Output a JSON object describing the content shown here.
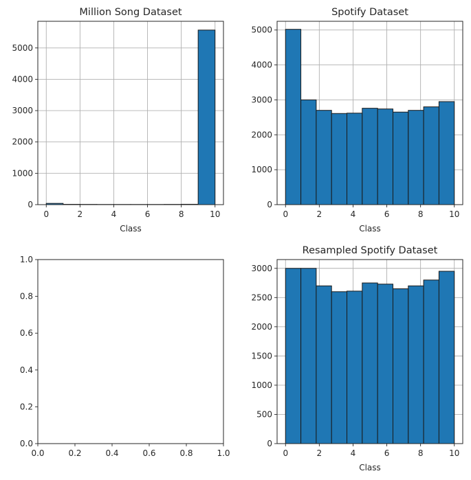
{
  "colors": {
    "bar": "#1f77b4",
    "edge": "#1a1a1a",
    "grid": "#b0b0b0",
    "axis": "#262626"
  },
  "chart_data": [
    {
      "type": "bar",
      "title": "Million Song Dataset",
      "xlabel": "Class",
      "ylabel": "",
      "grid": true,
      "xlim": [
        -0.5,
        10.5
      ],
      "ylim": [
        0,
        5850
      ],
      "xticks": [
        0,
        2,
        4,
        6,
        8,
        10
      ],
      "yticks": [
        0,
        1000,
        2000,
        3000,
        4000,
        5000
      ],
      "bins": [
        {
          "x0": 0,
          "x1": 1,
          "value": 40
        },
        {
          "x0": 1,
          "x1": 2,
          "value": 10
        },
        {
          "x0": 2,
          "x1": 3,
          "value": 8
        },
        {
          "x0": 3,
          "x1": 4,
          "value": 6
        },
        {
          "x0": 4,
          "x1": 5,
          "value": 6
        },
        {
          "x0": 5,
          "x1": 6,
          "value": 6
        },
        {
          "x0": 6,
          "x1": 7,
          "value": 6
        },
        {
          "x0": 7,
          "x1": 8,
          "value": 8
        },
        {
          "x0": 8,
          "x1": 9,
          "value": 12
        },
        {
          "x0": 9,
          "x1": 10,
          "value": 5570
        }
      ]
    },
    {
      "type": "bar",
      "title": "Spotify Dataset",
      "xlabel": "Class",
      "ylabel": "",
      "grid": true,
      "xlim": [
        -0.5,
        10.5
      ],
      "ylim": [
        0,
        5250
      ],
      "xticks": [
        0,
        2,
        4,
        6,
        8,
        10
      ],
      "yticks": [
        0,
        1000,
        2000,
        3000,
        4000,
        5000
      ],
      "bins": [
        {
          "x0": 0,
          "x1": 0.909,
          "value": 5020
        },
        {
          "x0": 0.909,
          "x1": 1.818,
          "value": 3000
        },
        {
          "x0": 1.818,
          "x1": 2.727,
          "value": 2700
        },
        {
          "x0": 2.727,
          "x1": 3.636,
          "value": 2610
        },
        {
          "x0": 3.636,
          "x1": 4.545,
          "value": 2620
        },
        {
          "x0": 4.545,
          "x1": 5.455,
          "value": 2760
        },
        {
          "x0": 5.455,
          "x1": 6.364,
          "value": 2740
        },
        {
          "x0": 6.364,
          "x1": 7.273,
          "value": 2650
        },
        {
          "x0": 7.273,
          "x1": 8.182,
          "value": 2700
        },
        {
          "x0": 8.182,
          "x1": 9.091,
          "value": 2800
        },
        {
          "x0": 9.091,
          "x1": 10,
          "value": 2950
        }
      ]
    },
    {
      "type": "empty",
      "title": "",
      "xlabel": "",
      "ylabel": "",
      "grid": false,
      "xlim": [
        0,
        1
      ],
      "ylim": [
        0,
        1
      ],
      "xticks": [
        0.0,
        0.2,
        0.4,
        0.6,
        0.8,
        1.0
      ],
      "yticks": [
        0.0,
        0.2,
        0.4,
        0.6,
        0.8,
        1.0
      ],
      "tick_decimals": 1,
      "bins": []
    },
    {
      "type": "bar",
      "title": "Resampled Spotify Dataset",
      "xlabel": "Class",
      "ylabel": "",
      "grid": true,
      "xlim": [
        -0.5,
        10.5
      ],
      "ylim": [
        0,
        3150
      ],
      "xticks": [
        0,
        2,
        4,
        6,
        8,
        10
      ],
      "yticks": [
        0,
        500,
        1000,
        1500,
        2000,
        2500,
        3000
      ],
      "bins": [
        {
          "x0": 0,
          "x1": 0.909,
          "value": 3000
        },
        {
          "x0": 0.909,
          "x1": 1.818,
          "value": 3000
        },
        {
          "x0": 1.818,
          "x1": 2.727,
          "value": 2700
        },
        {
          "x0": 2.727,
          "x1": 3.636,
          "value": 2600
        },
        {
          "x0": 3.636,
          "x1": 4.545,
          "value": 2610
        },
        {
          "x0": 4.545,
          "x1": 5.455,
          "value": 2750
        },
        {
          "x0": 5.455,
          "x1": 6.364,
          "value": 2730
        },
        {
          "x0": 6.364,
          "x1": 7.273,
          "value": 2650
        },
        {
          "x0": 7.273,
          "x1": 8.182,
          "value": 2700
        },
        {
          "x0": 8.182,
          "x1": 9.091,
          "value": 2800
        },
        {
          "x0": 9.091,
          "x1": 10,
          "value": 2950
        }
      ]
    }
  ]
}
